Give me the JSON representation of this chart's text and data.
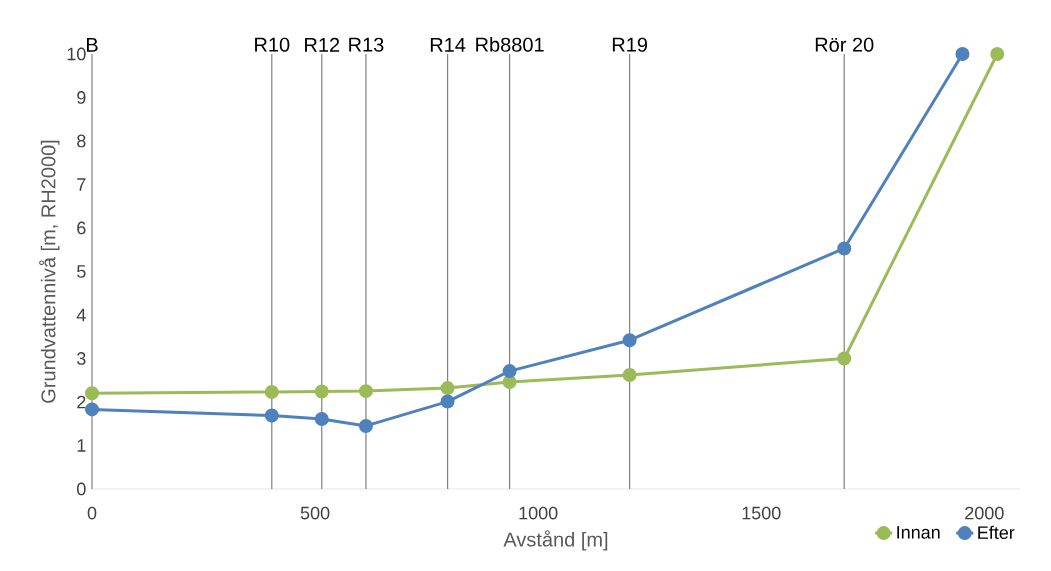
{
  "chart_data": {
    "type": "line",
    "xlabel": "Avstånd [m]",
    "ylabel": "Grundvattennivå [m, RH2000]",
    "xlim": [
      0,
      2080
    ],
    "ylim": [
      0,
      10
    ],
    "xticks": [
      0,
      500,
      1000,
      1500,
      2000
    ],
    "yticks": [
      0,
      1,
      2,
      3,
      4,
      5,
      6,
      7,
      8,
      9,
      10
    ],
    "grid": false,
    "legend": "bottom right",
    "marker": "circle",
    "line_style": "solid",
    "series": [
      {
        "name": "Innan",
        "color": "#9bbb59",
        "x": [
          0,
          403,
          515,
          614,
          797,
          936,
          1205,
          1686,
          2029
        ],
        "values": [
          2.2,
          2.23,
          2.24,
          2.25,
          2.32,
          2.46,
          2.62,
          3.0,
          10
        ]
      },
      {
        "name": "Efter",
        "color": "#4f81bd",
        "x": [
          0,
          403,
          515,
          614,
          797,
          936,
          1205,
          1686,
          1951
        ],
        "values": [
          1.83,
          1.69,
          1.61,
          1.45,
          2.01,
          2.71,
          3.42,
          5.53,
          10
        ]
      }
    ],
    "ref_lines": [
      {
        "axis": "x",
        "value": 0,
        "label": "B",
        "color": "#7f7f7f"
      },
      {
        "axis": "x",
        "value": 403,
        "label": "R10",
        "color": "#7f7f7f"
      },
      {
        "axis": "x",
        "value": 515,
        "label": "R12",
        "color": "#7f7f7f"
      },
      {
        "axis": "x",
        "value": 614,
        "label": "R13",
        "color": "#7f7f7f"
      },
      {
        "axis": "x",
        "value": 797,
        "label": "R14",
        "color": "#7f7f7f"
      },
      {
        "axis": "x",
        "value": 936,
        "label": "Rb8801",
        "color": "#7f7f7f"
      },
      {
        "axis": "x",
        "value": 1205,
        "label": "R19",
        "color": "#7f7f7f"
      },
      {
        "axis": "x",
        "value": 1686,
        "label": "Rör 20",
        "color": "#7f7f7f"
      }
    ]
  }
}
